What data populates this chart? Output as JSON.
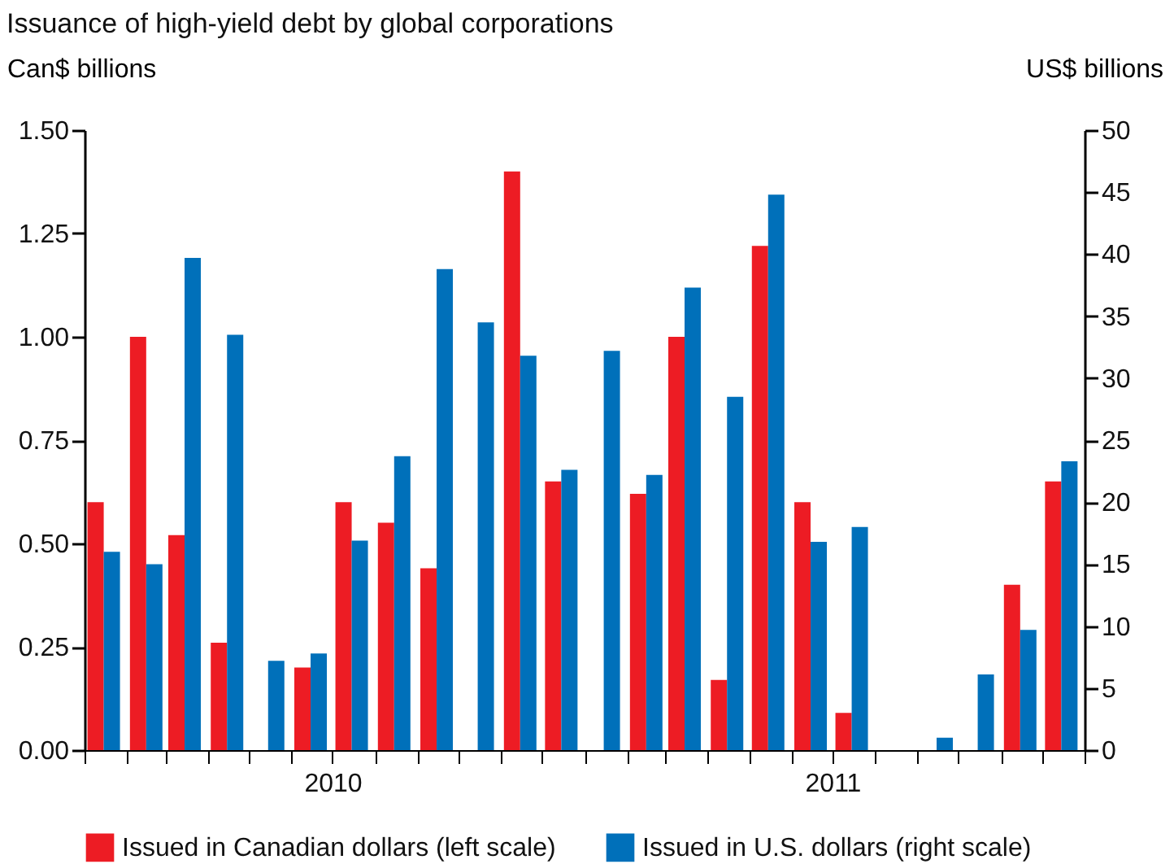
{
  "chart_data": {
    "type": "bar",
    "title": "Issuance of high-yield debt by global corporations",
    "ylabel": "Can$ billions",
    "y2label": "US$ billions",
    "x": [
      "2010-01-15",
      "2010-02-15",
      "2010-03-15",
      "2010-04-15",
      "2010-05-15",
      "2010-06-15",
      "2010-07-15",
      "2010-08-15",
      "2010-09-15",
      "2010-10-15",
      "2010-11-15",
      "2010-12-15",
      "2011-01-15",
      "2011-02-15",
      "2011-03-15",
      "2011-04-15",
      "2011-05-15",
      "2011-06-15",
      "2011-07-15",
      "2011-08-15",
      "2011-09-15",
      "2011-10-15",
      "2011-11-15",
      "2011-12-15"
    ],
    "xlim": [
      "2010-01-01",
      "2012-01-01"
    ],
    "xticks": [
      {
        "value": "2010-01-01",
        "label": null
      },
      {
        "value": "2010-02-01",
        "label": null
      },
      {
        "value": "2010-03-01",
        "label": null
      },
      {
        "value": "2010-04-01",
        "label": null
      },
      {
        "value": "2010-05-01",
        "label": null
      },
      {
        "value": "2010-06-01",
        "label": null
      },
      {
        "value": "2010-07-01",
        "label": "2010"
      },
      {
        "value": "2010-08-01",
        "label": null
      },
      {
        "value": "2010-09-01",
        "label": null
      },
      {
        "value": "2010-10-01",
        "label": null
      },
      {
        "value": "2010-11-01",
        "label": null
      },
      {
        "value": "2010-12-01",
        "label": null
      },
      {
        "value": "2011-01-01",
        "label": null
      },
      {
        "value": "2011-02-01",
        "label": null
      },
      {
        "value": "2011-03-01",
        "label": null
      },
      {
        "value": "2011-04-01",
        "label": null
      },
      {
        "value": "2011-05-01",
        "label": null
      },
      {
        "value": "2011-06-01",
        "label": null
      },
      {
        "value": "2011-07-01",
        "label": "2011"
      },
      {
        "value": "2011-08-01",
        "label": null
      },
      {
        "value": "2011-09-01",
        "label": null
      },
      {
        "value": "2011-10-01",
        "label": null
      },
      {
        "value": "2011-11-01",
        "label": null
      },
      {
        "value": "2011-12-01",
        "label": null
      },
      {
        "value": "2012-01-01",
        "label": null
      }
    ],
    "ylim": [
      0,
      1.5
    ],
    "yticks": [
      {
        "value": 0,
        "label": "0.00"
      },
      {
        "value": 0.25,
        "label": "0.25"
      },
      {
        "value": 0.5,
        "label": "0.50"
      },
      {
        "value": 0.75,
        "label": "0.75"
      },
      {
        "value": 1,
        "label": "1.00"
      },
      {
        "value": 1.25,
        "label": "1.25"
      },
      {
        "value": 1.5,
        "label": "1.50"
      }
    ],
    "y2lim": [
      0,
      50
    ],
    "y2ticks": [
      0,
      5,
      10,
      15,
      20,
      25,
      30,
      35,
      40,
      45,
      50
    ],
    "grid": false,
    "legend": "bottom",
    "series": [
      {
        "name": "Issued in Canadian dollars (left scale)",
        "color": "#ed1c24",
        "values": [
          0.6,
          1.0,
          0.52,
          0.26,
          null,
          0.2,
          0.6,
          0.55,
          0.44,
          null,
          1.4,
          0.65,
          null,
          0.62,
          1.0,
          0.17,
          1.22,
          0.6,
          0.09,
          null,
          null,
          null,
          0.4,
          0.65
        ]
      },
      {
        "name": "Issued in U.S. dollars (right scale)",
        "color": "#0070ba",
        "axis": "y2",
        "values": [
          16,
          15,
          39.7,
          33.5,
          7.2,
          7.8,
          16.9,
          23.7,
          38.8,
          34.5,
          31.8,
          22.6,
          32.2,
          22.2,
          37.3,
          28.5,
          44.8,
          16.8,
          18,
          null,
          1,
          6.1,
          9.7,
          23.3
        ]
      }
    ]
  }
}
